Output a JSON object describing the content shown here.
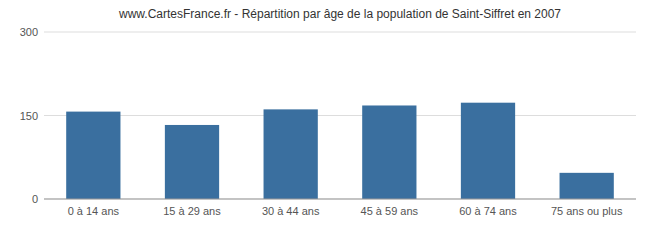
{
  "chart_data": {
    "type": "bar",
    "title": "www.CartesFrance.fr - Répartition par âge de la population de Saint-Siffret en 2007",
    "categories": [
      "0 à 14 ans",
      "15 à 29 ans",
      "30 à 44 ans",
      "45 à 59 ans",
      "60 à 74 ans",
      "75 ans ou plus"
    ],
    "values": [
      157,
      133,
      161,
      168,
      173,
      47
    ],
    "color": "#3a6f9f",
    "ylim": [
      0,
      300
    ],
    "yticks": [
      0,
      150,
      300
    ],
    "grid": true
  }
}
